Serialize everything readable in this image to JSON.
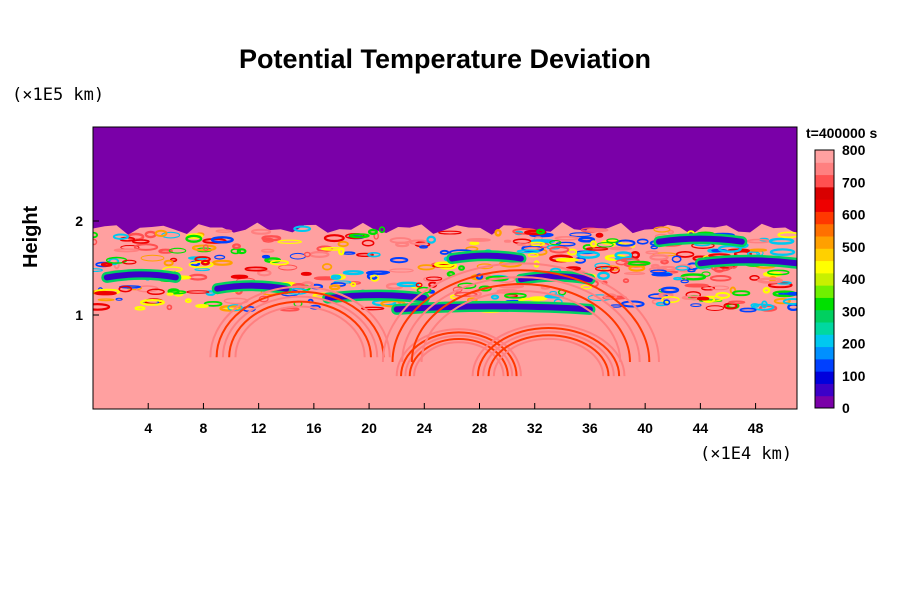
{
  "chart_data": {
    "type": "heatmap",
    "title": "Potential Temperature Deviation",
    "ylabel": "Height",
    "x_unit": "(×1E4 km)",
    "y_unit": "(×1E5 km)",
    "time_label": "t=400000 s",
    "xlim": [
      0,
      51
    ],
    "ylim": [
      0,
      3
    ],
    "x_ticks": [
      4,
      8,
      12,
      16,
      20,
      24,
      28,
      32,
      36,
      40,
      44,
      48
    ],
    "y_ticks": [
      1,
      2
    ],
    "colorbar": {
      "min": 0,
      "max": 800,
      "ticks": [
        0,
        100,
        200,
        300,
        400,
        500,
        600,
        700,
        800
      ],
      "colors": [
        "#7a00a8",
        "#3c00c8",
        "#0000dc",
        "#0040ff",
        "#0090ff",
        "#00c8f0",
        "#00d8a0",
        "#00d060",
        "#00e000",
        "#70f000",
        "#c8f000",
        "#ffff00",
        "#ffd000",
        "#ffa000",
        "#ff7000",
        "#ff3800",
        "#ee0000",
        "#d80000",
        "#ff5050",
        "#ff8080",
        "#ffa0a0"
      ]
    },
    "regions": {
      "upper_layer_value": 0,
      "background_value": 800,
      "mixed_layer_bottom": 1.05,
      "mixed_layer_top": 1.92,
      "dark_bands": [
        {
          "x0": 9,
          "x1": 14,
          "y": 1.28
        },
        {
          "x0": 17,
          "x1": 24,
          "y": 1.18
        },
        {
          "x0": 22,
          "x1": 36,
          "y": 1.06
        },
        {
          "x0": 31,
          "x1": 36,
          "y": 1.38
        },
        {
          "x0": 41,
          "x1": 47,
          "y": 1.78
        },
        {
          "x0": 44,
          "x1": 51,
          "y": 1.55
        },
        {
          "x0": 1,
          "x1": 6,
          "y": 1.4
        },
        {
          "x0": 26,
          "x1": 31,
          "y": 1.6
        }
      ],
      "arcs": [
        {
          "cx": 15,
          "cy": 0.55,
          "rx": 6.5,
          "ry": 0.75
        },
        {
          "cx": 26.5,
          "cy": 0.35,
          "rx": 4.5,
          "ry": 0.5
        },
        {
          "cx": 33,
          "cy": 0.35,
          "rx": 5.5,
          "ry": 0.55
        },
        {
          "cx": 31,
          "cy": 0.5,
          "rx": 10,
          "ry": 1.05
        }
      ]
    }
  }
}
